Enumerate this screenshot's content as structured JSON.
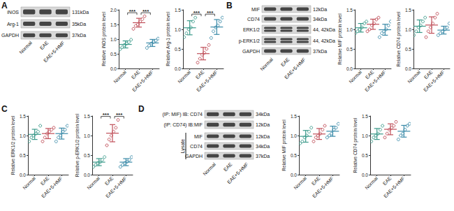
{
  "panel_labels": [
    "A",
    "B",
    "C",
    "D"
  ],
  "blots": [
    {
      "lanes": [
        "Normal",
        "EAE",
        "EAE+5-HMF"
      ],
      "rows": [
        {
          "label": "iNOS",
          "size": "131kDa"
        },
        {
          "label": "Arg-1",
          "size": "35kDa"
        },
        {
          "label": "GAPDH",
          "size": "37kDa"
        }
      ]
    },
    {
      "lanes": [
        "Normal",
        "EAE",
        "EAE+5-HMF"
      ],
      "rows": [
        {
          "label": "MIF",
          "size": "12kDa"
        },
        {
          "label": "CD74",
          "size": "34kDa"
        },
        {
          "label": "ERK1/2",
          "size": "44, 42kDa"
        },
        {
          "label": "p-ERK1/2",
          "size": "44, 42kDa"
        },
        {
          "label": "GAPDH",
          "size": "37kDa"
        }
      ]
    },
    {
      "lanes": [
        "Normal",
        "EAE",
        "EAE+5-HMF"
      ],
      "rows": [
        {
          "label": "(IP: MIF) IB: CD74",
          "size": "34kDa"
        },
        {
          "label": "(IP: CD74) IB:MIF",
          "size": "12kDa"
        }
      ],
      "group": {
        "label": "Lysate",
        "rows": [
          {
            "label": "MIF",
            "size": "12kDa"
          },
          {
            "label": "CD74",
            "size": "34kDa"
          },
          {
            "label": "GAPDH",
            "size": "37kDa"
          }
        ]
      }
    }
  ],
  "chart_data": [
    {
      "type": "scatter",
      "ylabel": "Relative iNOS protein level",
      "categories": [
        "Normal",
        "EAE",
        "EAE+5-HMF"
      ],
      "colors": [
        "#3a9a8a",
        "#c0505a",
        "#3a8aa8"
      ],
      "marker": "circle-open",
      "grid": false,
      "values": [
        [
          0.65,
          0.72,
          0.8,
          0.85,
          0.9,
          0.98
        ],
        [
          1.35,
          1.45,
          1.5,
          1.6,
          1.68,
          1.78
        ],
        [
          0.7,
          0.78,
          0.85,
          0.9,
          0.95,
          1.02
        ]
      ],
      "mean": [
        0.82,
        1.56,
        0.87
      ],
      "sd": [
        0.12,
        0.15,
        0.12
      ],
      "significance": [
        {
          "from": "Normal",
          "to": "EAE",
          "label": "***"
        },
        {
          "from": "EAE",
          "to": "EAE+5-HMF",
          "label": "***"
        }
      ],
      "ylim": [
        0,
        2
      ],
      "yticks": [
        {
          "value": 0,
          "label": "0.0"
        },
        {
          "value": 0.5,
          "label": "0.5"
        },
        {
          "value": 1,
          "label": "1.0"
        },
        {
          "value": 1.5,
          "label": "1.5"
        },
        {
          "value": 2,
          "label": "2.0"
        }
      ]
    },
    {
      "type": "scatter",
      "ylabel": "Relative Arg-1 protein level",
      "categories": [
        "Normal",
        "EAE",
        "EAE+5-HMF"
      ],
      "colors": [
        "#3a9a8a",
        "#c0505a",
        "#3a8aa8"
      ],
      "marker": "circle-open",
      "grid": false,
      "values": [
        [
          0.8,
          0.9,
          1.0,
          1.05,
          1.2,
          1.3
        ],
        [
          0.15,
          0.25,
          0.35,
          0.4,
          0.5,
          0.6
        ],
        [
          0.78,
          0.95,
          1.05,
          1.1,
          1.2,
          1.3
        ]
      ],
      "mean": [
        1.04,
        0.38,
        1.06
      ],
      "sd": [
        0.18,
        0.16,
        0.19
      ],
      "significance": [
        {
          "from": "Normal",
          "to": "EAE",
          "label": "***"
        },
        {
          "from": "EAE",
          "to": "EAE+5-HMF",
          "label": "***"
        }
      ],
      "ylim": [
        0,
        1.5
      ],
      "yticks": [
        {
          "value": 0,
          "label": "0.0"
        },
        {
          "value": 0.5,
          "label": "0.5"
        },
        {
          "value": 1,
          "label": "1.0"
        },
        {
          "value": 1.5,
          "label": "1.5"
        }
      ]
    },
    {
      "type": "scatter",
      "ylabel": "Relative MIF protein level",
      "categories": [
        "Normal",
        "EAE",
        "EAE+5-HMF"
      ],
      "colors": [
        "#3a9a8a",
        "#c0505a",
        "#3a8aa8"
      ],
      "marker": "circle-open",
      "grid": false,
      "values": [
        [
          0.9,
          0.95,
          1.0,
          1.05,
          1.15,
          1.2
        ],
        [
          0.95,
          1.0,
          1.1,
          1.15,
          1.25,
          1.3
        ],
        [
          0.8,
          0.9,
          0.95,
          1.0,
          1.1,
          1.2
        ]
      ],
      "mean": [
        1.04,
        1.13,
        0.99
      ],
      "sd": [
        0.11,
        0.13,
        0.14
      ],
      "significance": [],
      "ylim": [
        0,
        1.5
      ],
      "yticks": [
        {
          "value": 0,
          "label": "0.0"
        },
        {
          "value": 0.5,
          "label": "0.5"
        },
        {
          "value": 1,
          "label": "1.0"
        },
        {
          "value": 1.5,
          "label": "1.5"
        }
      ]
    },
    {
      "type": "scatter",
      "ylabel": "Relative CD74 protein level",
      "categories": [
        "Normal",
        "EAE",
        "EAE+5-HMF"
      ],
      "colors": [
        "#3a9a8a",
        "#c0505a",
        "#3a8aa8"
      ],
      "marker": "circle-open",
      "grid": false,
      "values": [
        [
          0.85,
          0.95,
          1.05,
          1.1,
          1.2,
          1.3
        ],
        [
          0.8,
          0.95,
          1.05,
          1.15,
          1.3,
          1.4
        ],
        [
          0.85,
          0.9,
          0.95,
          1.0,
          1.05,
          1.15
        ]
      ],
      "mean": [
        1.08,
        1.11,
        0.98
      ],
      "sd": [
        0.16,
        0.21,
        0.1
      ],
      "significance": [],
      "ylim": [
        0,
        1.5
      ],
      "yticks": [
        {
          "value": 0,
          "label": "0.0"
        },
        {
          "value": 0.5,
          "label": "0.5"
        },
        {
          "value": 1,
          "label": "1.0"
        },
        {
          "value": 1.5,
          "label": "1.5"
        }
      ]
    },
    {
      "type": "scatter",
      "ylabel": "Relative ERK1/2 protein level",
      "categories": [
        "Normal",
        "EAE",
        "EAE+5-HMF"
      ],
      "colors": [
        "#3a9a8a",
        "#c0505a",
        "#3a8aa8"
      ],
      "marker": "circle-open",
      "grid": false,
      "values": [
        [
          0.85,
          0.95,
          1.0,
          1.05,
          1.1,
          1.25
        ],
        [
          0.85,
          0.95,
          1.05,
          1.1,
          1.15,
          1.2
        ],
        [
          0.85,
          0.95,
          1.0,
          1.1,
          1.15,
          1.25
        ]
      ],
      "mean": [
        1.03,
        1.05,
        1.05
      ],
      "sd": [
        0.13,
        0.13,
        0.14
      ],
      "significance": [],
      "ylim": [
        0,
        1.5
      ],
      "yticks": [
        {
          "value": 0,
          "label": "0.0"
        },
        {
          "value": 0.5,
          "label": "0.5"
        },
        {
          "value": 1,
          "label": "1.0"
        },
        {
          "value": 1.5,
          "label": "1.5"
        }
      ]
    },
    {
      "type": "scatter",
      "ylabel": "Relative p-ERK1/2 protein level",
      "categories": [
        "Normal",
        "EAE",
        "EAE+5-HMF"
      ],
      "colors": [
        "#3a9a8a",
        "#c0505a",
        "#3a8aa8"
      ],
      "marker": "circle-open",
      "grid": false,
      "values": [
        [
          0.2,
          0.25,
          0.3,
          0.32,
          0.38,
          0.45
        ],
        [
          0.75,
          0.9,
          1.0,
          1.1,
          1.2,
          1.4
        ],
        [
          0.2,
          0.25,
          0.3,
          0.33,
          0.38,
          0.45
        ]
      ],
      "mean": [
        0.32,
        1.06,
        0.32
      ],
      "sd": [
        0.09,
        0.22,
        0.09
      ],
      "significance": [
        {
          "from": "Normal",
          "to": "EAE",
          "label": "***"
        },
        {
          "from": "EAE",
          "to": "EAE+5-HMF",
          "label": "***"
        }
      ],
      "ylim": [
        0,
        1.5
      ],
      "yticks": [
        {
          "value": 0,
          "label": "0.0"
        },
        {
          "value": 0.5,
          "label": "0.5"
        },
        {
          "value": 1,
          "label": "1.0"
        },
        {
          "value": 1.5,
          "label": "1.5"
        }
      ]
    },
    {
      "type": "scatter",
      "ylabel": "Relative MIF protein level",
      "categories": [
        "Normal",
        "EAE",
        "EAE+5-HMF"
      ],
      "colors": [
        "#3a9a8a",
        "#c0505a",
        "#3a8aa8"
      ],
      "marker": "circle-open",
      "grid": false,
      "values": [
        [
          0.8,
          0.85,
          0.95,
          1.0,
          1.1,
          1.2
        ],
        [
          0.85,
          0.95,
          1.0,
          1.05,
          1.15,
          1.25
        ],
        [
          0.95,
          1.0,
          1.05,
          1.15,
          1.2,
          1.3
        ]
      ],
      "mean": [
        0.98,
        1.04,
        1.11
      ],
      "sd": [
        0.15,
        0.14,
        0.13
      ],
      "significance": [],
      "ylim": [
        0,
        1.5
      ],
      "yticks": [
        {
          "value": 0,
          "label": "0.0"
        },
        {
          "value": 0.5,
          "label": "0.5"
        },
        {
          "value": 1,
          "label": "1.0"
        },
        {
          "value": 1.5,
          "label": "1.5"
        }
      ]
    },
    {
      "type": "scatter",
      "ylabel": "Relative CD74 protein level",
      "categories": [
        "Normal",
        "EAE",
        "EAE+5-HMF"
      ],
      "colors": [
        "#3a9a8a",
        "#c0505a",
        "#3a8aa8"
      ],
      "marker": "circle-open",
      "grid": false,
      "values": [
        [
          0.85,
          0.95,
          1.0,
          1.05,
          1.15,
          1.25
        ],
        [
          0.95,
          1.05,
          1.15,
          1.2,
          1.25,
          1.35
        ],
        [
          0.9,
          1.0,
          1.05,
          1.15,
          1.25,
          1.3
        ]
      ],
      "mean": [
        1.04,
        1.16,
        1.11
      ],
      "sd": [
        0.14,
        0.14,
        0.15
      ],
      "significance": [],
      "ylim": [
        0,
        1.5
      ],
      "yticks": [
        {
          "value": 0,
          "label": "0.0"
        },
        {
          "value": 0.5,
          "label": "0.5"
        },
        {
          "value": 1,
          "label": "1.0"
        },
        {
          "value": 1.5,
          "label": "1.5"
        }
      ]
    }
  ]
}
